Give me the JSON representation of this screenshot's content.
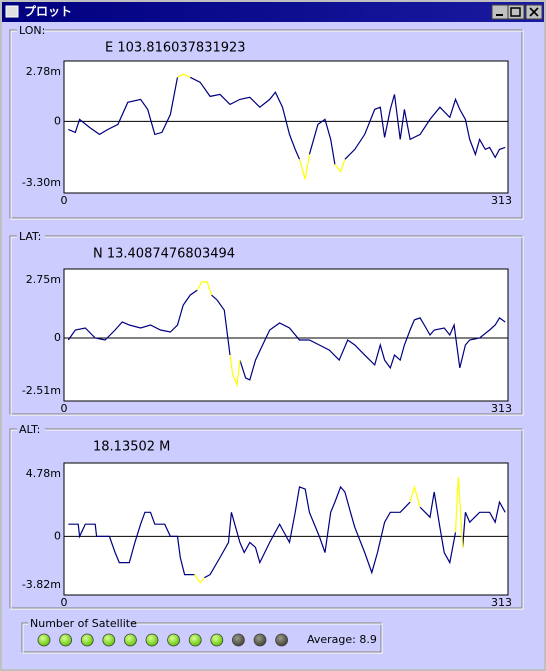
{
  "window_title": "プロット",
  "chart_data": [
    {
      "type": "line",
      "title": "LON:",
      "subtitle": "E 103.816037831923",
      "x": [
        3,
        8,
        11,
        18,
        25,
        31,
        38,
        45,
        54,
        59,
        64,
        69,
        75,
        80,
        84,
        89,
        96,
        103,
        110,
        117,
        124,
        131,
        138,
        145,
        149,
        154,
        159,
        163,
        166,
        170,
        173,
        179,
        184,
        188,
        191,
        195,
        198,
        205,
        212,
        219,
        223,
        226,
        230,
        233,
        237,
        240,
        244,
        251,
        258,
        265,
        272,
        276,
        279,
        283,
        286,
        290,
        293,
        297,
        300,
        304,
        307,
        311
      ],
      "xlim": [
        0,
        313
      ],
      "xticks": [
        0,
        313
      ],
      "ylim": [
        -3.3,
        2.78
      ],
      "yticks": [
        {
          "value": 2.78,
          "label": "2.78m"
        },
        0,
        {
          "value": -3.3,
          "label": "-3.30m"
        }
      ],
      "grid": true,
      "series": [
        {
          "color": "#000080",
          "values": [
            -0.37,
            -0.51,
            0.09,
            -0.28,
            -0.6,
            -0.37,
            -0.14,
            0.88,
            1.01,
            0.55,
            -0.6,
            -0.51,
            0.32,
            2.03,
            null,
            2.03,
            1.8,
            1.15,
            1.24,
            0.78,
            1.01,
            1.11,
            0.65,
            1.01,
            1.34,
            0.65,
            -0.6,
            -1.29,
            -1.75,
            null,
            -1.52,
            -0.14,
            0.09,
            -0.83,
            -1.98,
            null,
            -1.75,
            -1.29,
            -0.6,
            0.55,
            0.65,
            -0.74,
            0.55,
            1.24,
            -0.83,
            0.55,
            -0.83,
            -0.6,
            0.09,
            0.65,
            0.18,
            1.01,
            0.55,
            0.09,
            -0.83,
            -1.52,
            -0.83,
            -1.29,
            -1.2,
            -1.66,
            -1.29,
            -1.2
          ]
        },
        {
          "color": "#ffff00",
          "values": [
            null,
            null,
            null,
            null,
            null,
            null,
            null,
            null,
            null,
            null,
            null,
            null,
            null,
            2.03,
            2.17,
            2.03,
            null,
            null,
            null,
            null,
            null,
            null,
            null,
            null,
            null,
            null,
            null,
            null,
            -1.75,
            -2.67,
            -1.52,
            null,
            null,
            null,
            -1.98,
            -2.31,
            -1.75,
            null,
            null,
            null,
            null,
            null,
            null,
            null,
            null,
            null,
            null,
            null,
            null,
            null,
            null,
            null,
            null,
            null,
            null,
            null,
            null,
            null,
            null,
            null,
            null,
            null
          ]
        }
      ]
    },
    {
      "type": "line",
      "title": "LAT:",
      "subtitle": "N 13.4087476803494",
      "x": [
        3,
        8,
        15,
        22,
        29,
        36,
        41,
        46,
        54,
        61,
        68,
        75,
        80,
        84,
        89,
        94,
        97,
        101,
        104,
        108,
        113,
        117,
        119,
        122,
        124,
        128,
        131,
        135,
        140,
        145,
        152,
        159,
        166,
        173,
        180,
        187,
        194,
        200,
        205,
        212,
        219,
        223,
        226,
        230,
        233,
        237,
        240,
        244,
        247,
        251,
        254,
        258,
        261,
        268,
        272,
        275,
        279,
        283,
        286,
        293,
        300,
        304,
        307,
        311
      ],
      "xlim": [
        0,
        313
      ],
      "xticks": [
        0,
        313
      ],
      "ylim": [
        -2.51,
        2.75
      ],
      "yticks": [
        {
          "value": 2.75,
          "label": "2.75m"
        },
        0,
        {
          "value": -2.51,
          "label": "-2.51m"
        }
      ],
      "grid": true,
      "series": [
        {
          "color": "#000080",
          "values": [
            -0.08,
            0.32,
            0.4,
            0.0,
            -0.08,
            0.32,
            0.64,
            0.52,
            0.4,
            0.52,
            0.32,
            0.24,
            0.52,
            1.31,
            1.71,
            1.91,
            null,
            null,
            1.71,
            1.51,
            1.11,
            -0.68,
            null,
            null,
            -0.88,
            -1.59,
            -1.67,
            -0.88,
            -0.28,
            0.32,
            0.6,
            0.4,
            -0.08,
            -0.08,
            -0.28,
            -0.48,
            -0.88,
            -0.08,
            -0.28,
            -0.68,
            -1.07,
            -0.28,
            -0.88,
            -1.19,
            -0.68,
            -0.88,
            -0.28,
            0.32,
            0.72,
            0.8,
            0.52,
            0.12,
            0.32,
            0.4,
            0.12,
            0.52,
            -1.19,
            -0.28,
            -0.08,
            0.0,
            0.32,
            0.52,
            0.8,
            0.64
          ]
        },
        {
          "color": "#ffff00",
          "values": [
            null,
            null,
            null,
            null,
            null,
            null,
            null,
            null,
            null,
            null,
            null,
            null,
            null,
            null,
            null,
            1.91,
            2.23,
            2.23,
            1.71,
            null,
            null,
            -0.68,
            -1.47,
            -1.87,
            -0.88,
            null,
            null,
            null,
            null,
            null,
            null,
            null,
            null,
            null,
            null,
            null,
            null,
            null,
            null,
            null,
            null,
            null,
            null,
            null,
            null,
            null,
            null,
            null,
            null,
            null,
            null,
            null,
            null,
            null,
            null,
            null,
            null,
            null,
            null,
            null,
            null,
            null,
            null,
            null
          ]
        }
      ]
    },
    {
      "type": "line",
      "title": "ALT:",
      "subtitle": "18.13502  M",
      "x": [
        3,
        10,
        11,
        15,
        22,
        23,
        32,
        36,
        39,
        46,
        50,
        54,
        57,
        61,
        64,
        71,
        75,
        80,
        82,
        85,
        92,
        96,
        99,
        103,
        110,
        116,
        118,
        124,
        127,
        131,
        135,
        138,
        145,
        152,
        159,
        163,
        166,
        170,
        173,
        180,
        184,
        188,
        191,
        195,
        198,
        202,
        205,
        212,
        217,
        221,
        226,
        230,
        237,
        244,
        247,
        251,
        258,
        261,
        265,
        268,
        272,
        276,
        278,
        281,
        283,
        286,
        293,
        300,
        304,
        307,
        311
      ],
      "xlim": [
        0,
        313
      ],
      "xticks": [
        0,
        313
      ],
      "ylim": [
        -3.82,
        4.78
      ],
      "yticks": [
        {
          "value": 4.78,
          "label": "4.78m"
        },
        0,
        {
          "value": -3.82,
          "label": "-3.82m"
        }
      ],
      "grid": true,
      "series": [
        {
          "color": "#000080",
          "values": [
            0.79,
            0.79,
            0.0,
            0.79,
            0.79,
            0.0,
            0.0,
            -1.05,
            -1.71,
            -1.71,
            -0.39,
            0.79,
            1.57,
            1.57,
            0.79,
            0.79,
            0.0,
            0.0,
            -1.38,
            -2.49,
            -2.49,
            null,
            -2.69,
            -2.49,
            -1.38,
            -0.39,
            1.57,
            -0.39,
            -1.05,
            -0.39,
            -0.72,
            -1.71,
            -0.39,
            0.79,
            -0.39,
            1.57,
            3.22,
            3.08,
            1.57,
            0.0,
            -1.05,
            1.57,
            2.23,
            3.22,
            2.89,
            1.57,
            0.59,
            -1.05,
            -2.36,
            -1.05,
            0.92,
            1.57,
            1.57,
            2.23,
            null,
            1.9,
            1.25,
            2.89,
            0.59,
            -1.05,
            -1.71,
            0.26,
            null,
            -0.72,
            1.57,
            0.92,
            1.57,
            1.57,
            0.92,
            2.23,
            1.57
          ]
        },
        {
          "color": "#ffff00",
          "values": [
            null,
            null,
            null,
            null,
            null,
            null,
            null,
            null,
            null,
            null,
            null,
            null,
            null,
            null,
            null,
            null,
            null,
            null,
            null,
            null,
            -2.49,
            -3.02,
            -2.69,
            null,
            null,
            null,
            null,
            null,
            null,
            null,
            null,
            null,
            null,
            null,
            null,
            null,
            null,
            null,
            null,
            null,
            null,
            null,
            null,
            null,
            null,
            null,
            null,
            null,
            null,
            null,
            null,
            null,
            null,
            2.23,
            3.22,
            1.9,
            null,
            null,
            null,
            null,
            null,
            0.26,
            3.87,
            -0.72,
            null,
            null,
            null,
            null,
            null,
            null,
            null
          ]
        }
      ]
    }
  ],
  "satellites": {
    "label": "Number of Satellite",
    "leds": [
      1,
      1,
      1,
      1,
      1,
      1,
      1,
      1,
      1,
      0,
      0,
      0
    ],
    "average": "Average: 8.9"
  }
}
